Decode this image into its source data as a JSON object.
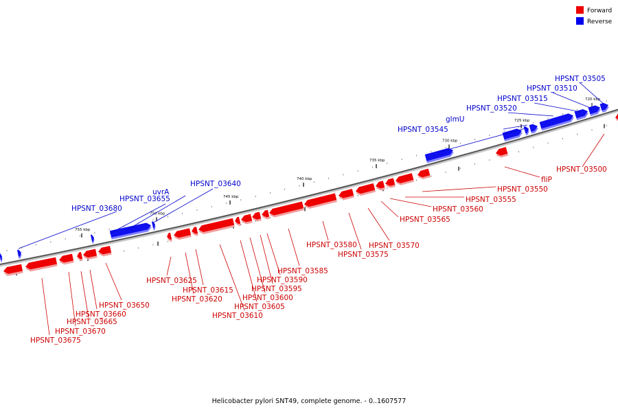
{
  "caption": "Helicobacter pylori SNT49, complete genome. - 0..1607577",
  "legend": [
    {
      "label": "Forward",
      "color": "#ee0000"
    },
    {
      "label": "Reverse",
      "color": "#0000ee"
    }
  ],
  "colors": {
    "forward": "#ee0000",
    "forward_shadow": "#f2a0a0",
    "reverse": "#1010ee",
    "reverse_shadow": "#8080ff",
    "backbone": "#555555",
    "label_forward": "#cc0000",
    "label_reverse": "#0000cc"
  },
  "ticks": [
    {
      "label": "720 kbp"
    },
    {
      "label": "725 kbp"
    },
    {
      "label": "730 kbp"
    },
    {
      "label": "735 kbp"
    },
    {
      "label": "740 kbp"
    },
    {
      "label": "745 kbp"
    },
    {
      "label": "750 kbp"
    },
    {
      "label": "755 kbp"
    }
  ],
  "genes": {
    "reverse": [
      {
        "label": "HPSNT_03505"
      },
      {
        "label": "HPSNT_03510"
      },
      {
        "label": "HPSNT_03515"
      },
      {
        "label": "HPSNT_03520"
      },
      {
        "label": "glmU"
      },
      {
        "label": "HPSNT_03545"
      },
      {
        "label": "HPSNT_03640"
      },
      {
        "label": "uvrA"
      },
      {
        "label": "HPSNT_03655"
      },
      {
        "label": "HPSNT_03680"
      }
    ],
    "forward": [
      {
        "label": "HPSNT_03500"
      },
      {
        "label": "fliP"
      },
      {
        "label": "HPSNT_03550"
      },
      {
        "label": "HPSNT_03555"
      },
      {
        "label": "HPSNT_03560"
      },
      {
        "label": "HPSNT_03565"
      },
      {
        "label": "HPSNT_03570"
      },
      {
        "label": "HPSNT_03575"
      },
      {
        "label": "HPSNT_03580"
      },
      {
        "label": "HPSNT_03585"
      },
      {
        "label": "HPSNT_03590"
      },
      {
        "label": "HPSNT_03595"
      },
      {
        "label": "HPSNT_03600"
      },
      {
        "label": "HPSNT_03605"
      },
      {
        "label": "HPSNT_03610"
      },
      {
        "label": "HPSNT_03615"
      },
      {
        "label": "HPSNT_03620"
      },
      {
        "label": "HPSNT_03625"
      },
      {
        "label": "HPSNT_03650"
      },
      {
        "label": "HPSNT_03660"
      },
      {
        "label": "HPSNT_03665"
      },
      {
        "label": "HPSNT_03670"
      },
      {
        "label": "HPSNT_03675"
      }
    ]
  }
}
